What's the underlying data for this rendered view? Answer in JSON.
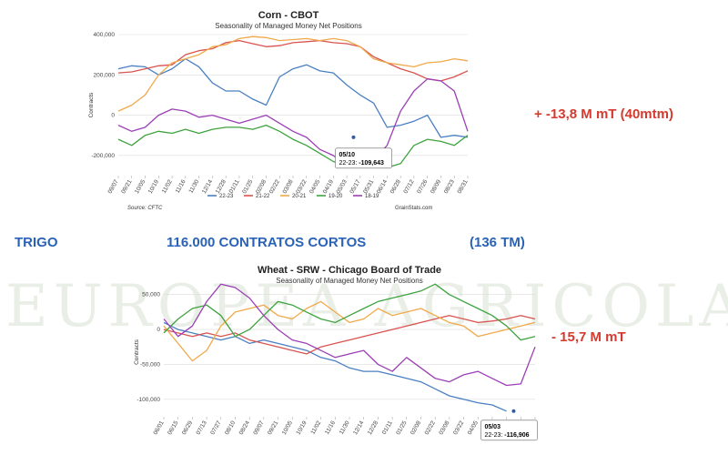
{
  "watermark": "EUROPEA AGRICOLA",
  "annotations": {
    "corn_change": "+ -13,8 M mT (40mtm)",
    "wheat_change": "- 15,7 M mT",
    "trigo_label": "TRIGO",
    "contracts_short": "116.000 CONTRATOS CORTOS",
    "tonnage": "(136 TM)"
  },
  "colors": {
    "22-23": "#4a7fc1",
    "21-22": "#d9534f",
    "20-21": "#f0a94a",
    "19-20": "#3fa33f",
    "18-19": "#9b3fb5"
  },
  "chart_data": [
    {
      "type": "line",
      "title": "Corn - CBOT",
      "subtitle": "Seasonality of Managed Money Net Positions",
      "ylabel": "Contracts",
      "ylim": [
        -300000,
        400000
      ],
      "yticks": [
        {
          "v": 400000,
          "label": "400,000"
        },
        {
          "v": 200000,
          "label": "200,000"
        },
        {
          "v": 0,
          "label": "0"
        },
        {
          "v": -200000,
          "label": "-200,000"
        }
      ],
      "x_labels": [
        "09/07",
        "09/21",
        "10/05",
        "10/19",
        "11/02",
        "11/16",
        "11/30",
        "12/14",
        "12/28",
        "01/11",
        "01/25",
        "02/08",
        "02/22",
        "03/08",
        "03/22",
        "04/05",
        "04/19",
        "05/03",
        "05/17",
        "05/31",
        "06/14",
        "06/28",
        "07/12",
        "07/26",
        "08/09",
        "08/23",
        "08/31"
      ],
      "source": "Source: CFTC",
      "credit": "GrainStats.com",
      "legend": [
        "22-23",
        "21-22",
        "20-21",
        "19-20",
        "18-19"
      ],
      "tooltip": {
        "date": "05/10",
        "label": "22-23: ",
        "value": "-109,643",
        "x": 17.5,
        "y": -109643
      },
      "series": [
        {
          "name": "22-23",
          "values": [
            230000,
            245000,
            240000,
            200000,
            230000,
            280000,
            240000,
            160000,
            120000,
            120000,
            80000,
            50000,
            190000,
            230000,
            250000,
            220000,
            210000,
            150000,
            100000,
            60000,
            -60000,
            -50000,
            -30000,
            0,
            -110000,
            -100000,
            -109643
          ]
        },
        {
          "name": "21-22",
          "values": [
            210000,
            215000,
            230000,
            245000,
            250000,
            300000,
            320000,
            330000,
            360000,
            370000,
            355000,
            340000,
            345000,
            360000,
            365000,
            370000,
            360000,
            355000,
            340000,
            290000,
            260000,
            230000,
            210000,
            180000,
            170000,
            190000,
            220000
          ]
        },
        {
          "name": "20-21",
          "values": [
            20000,
            50000,
            100000,
            200000,
            260000,
            280000,
            300000,
            340000,
            350000,
            380000,
            390000,
            385000,
            370000,
            375000,
            380000,
            370000,
            380000,
            370000,
            340000,
            280000,
            260000,
            250000,
            240000,
            260000,
            265000,
            280000,
            270000
          ]
        },
        {
          "name": "19-20",
          "values": [
            -120000,
            -150000,
            -100000,
            -80000,
            -90000,
            -70000,
            -90000,
            -70000,
            -60000,
            -60000,
            -70000,
            -50000,
            -80000,
            -120000,
            -150000,
            -190000,
            -230000,
            -250000,
            -230000,
            -240000,
            -260000,
            -240000,
            -150000,
            -120000,
            -130000,
            -150000,
            -100000
          ]
        },
        {
          "name": "18-19",
          "values": [
            -50000,
            -80000,
            -60000,
            0,
            30000,
            20000,
            -10000,
            0,
            -20000,
            -40000,
            -20000,
            0,
            -40000,
            -80000,
            -110000,
            -170000,
            -200000,
            -250000,
            -260000,
            -220000,
            -150000,
            20000,
            120000,
            180000,
            170000,
            120000,
            -80000
          ]
        }
      ]
    },
    {
      "type": "line",
      "title": "Wheat - SRW - Chicago Board of Trade",
      "subtitle": "Seasonality of Managed Money Net Positions",
      "ylabel": "Contracts",
      "ylim": [
        -125000,
        60000
      ],
      "yticks": [
        {
          "v": 50000,
          "label": "50,000"
        },
        {
          "v": 0,
          "label": "0"
        },
        {
          "v": -50000,
          "label": "-50,000"
        },
        {
          "v": -100000,
          "label": "-100,000"
        }
      ],
      "x_labels": [
        "06/01",
        "06/15",
        "06/29",
        "07/13",
        "07/27",
        "08/10",
        "08/24",
        "09/07",
        "09/21",
        "10/05",
        "10/19",
        "11/02",
        "11/16",
        "11/30",
        "12/14",
        "12/28",
        "01/11",
        "01/25",
        "02/08",
        "02/22",
        "03/08",
        "03/22",
        "04/05",
        "04/19",
        "05/03",
        "05/17",
        "05/31"
      ],
      "credit": "",
      "tooltip": {
        "date": "05/03",
        "label": "22-23: ",
        "value": "-116,906",
        "x": 24.5,
        "y": -116906
      },
      "series": [
        {
          "name": "22-23",
          "values": [
            10000,
            0,
            -5000,
            -10000,
            -15000,
            -10000,
            -20000,
            -15000,
            -20000,
            -25000,
            -30000,
            -40000,
            -45000,
            -55000,
            -60000,
            -60000,
            -65000,
            -70000,
            -75000,
            -85000,
            -95000,
            -100000,
            -105000,
            -108000,
            -116906
          ]
        },
        {
          "name": "21-22",
          "values": [
            0,
            -5000,
            -10000,
            -5000,
            -10000,
            -5000,
            -15000,
            -20000,
            -25000,
            -30000,
            -35000,
            -25000,
            -20000,
            -15000,
            -10000,
            -5000,
            0,
            5000,
            10000,
            15000,
            20000,
            15000,
            10000,
            12000,
            15000,
            20000,
            15000
          ]
        },
        {
          "name": "20-21",
          "values": [
            5000,
            -20000,
            -45000,
            -30000,
            5000,
            25000,
            30000,
            35000,
            20000,
            15000,
            30000,
            40000,
            25000,
            10000,
            15000,
            30000,
            20000,
            25000,
            30000,
            20000,
            10000,
            5000,
            -10000,
            -5000,
            0,
            5000,
            10000
          ]
        },
        {
          "name": "19-20",
          "values": [
            -5000,
            15000,
            30000,
            35000,
            20000,
            -10000,
            0,
            20000,
            40000,
            35000,
            25000,
            15000,
            10000,
            20000,
            30000,
            40000,
            45000,
            50000,
            55000,
            65000,
            50000,
            40000,
            30000,
            20000,
            5000,
            -15000,
            -10000
          ]
        },
        {
          "name": "18-19",
          "values": [
            15000,
            -10000,
            5000,
            40000,
            65000,
            60000,
            45000,
            20000,
            0,
            -15000,
            -20000,
            -30000,
            -40000,
            -35000,
            -30000,
            -50000,
            -60000,
            -40000,
            -55000,
            -70000,
            -75000,
            -65000,
            -60000,
            -70000,
            -80000,
            -78000,
            -25000
          ]
        }
      ]
    }
  ]
}
